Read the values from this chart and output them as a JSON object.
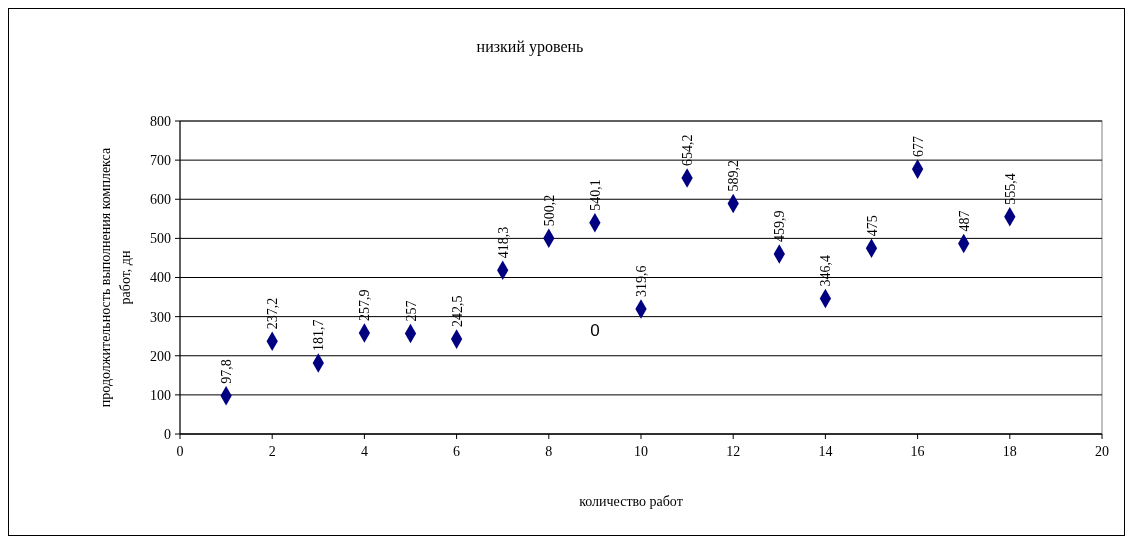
{
  "chart_data": {
    "type": "scatter",
    "title": "низкий уровень",
    "xlabel": "количество работ",
    "ylabel": "продолжительность выполнения комплекса работ, дн",
    "x": [
      1,
      2,
      3,
      4,
      5,
      6,
      7,
      8,
      9,
      10,
      11,
      12,
      13,
      14,
      15,
      16,
      17,
      18
    ],
    "series": [
      {
        "color": "#000080",
        "values": [
          97.8,
          237.2,
          181.7,
          257.9,
          257,
          242.5,
          418.3,
          500.2,
          540.1,
          319.6,
          654.2,
          589.2,
          459.9,
          346.4,
          475,
          677,
          487,
          555.4
        ],
        "value_labels": [
          "97,8",
          "237,2",
          "181,7",
          "257,9",
          "257",
          "242,5",
          "418,3",
          "500,2",
          "540,1",
          "319,6",
          "654,2",
          "589,2",
          "459,9",
          "346,4",
          "475",
          "677",
          "487",
          "555,4"
        ]
      }
    ],
    "xlim": [
      0,
      20
    ],
    "xticks": [
      0,
      2,
      4,
      6,
      8,
      10,
      12,
      14,
      16,
      18,
      20
    ],
    "ylim": [
      0,
      800
    ],
    "yticks": [
      0,
      100,
      200,
      300,
      400,
      500,
      600,
      700,
      800
    ],
    "grid": "y",
    "marker": "diamond",
    "annotations": [
      "0"
    ]
  }
}
